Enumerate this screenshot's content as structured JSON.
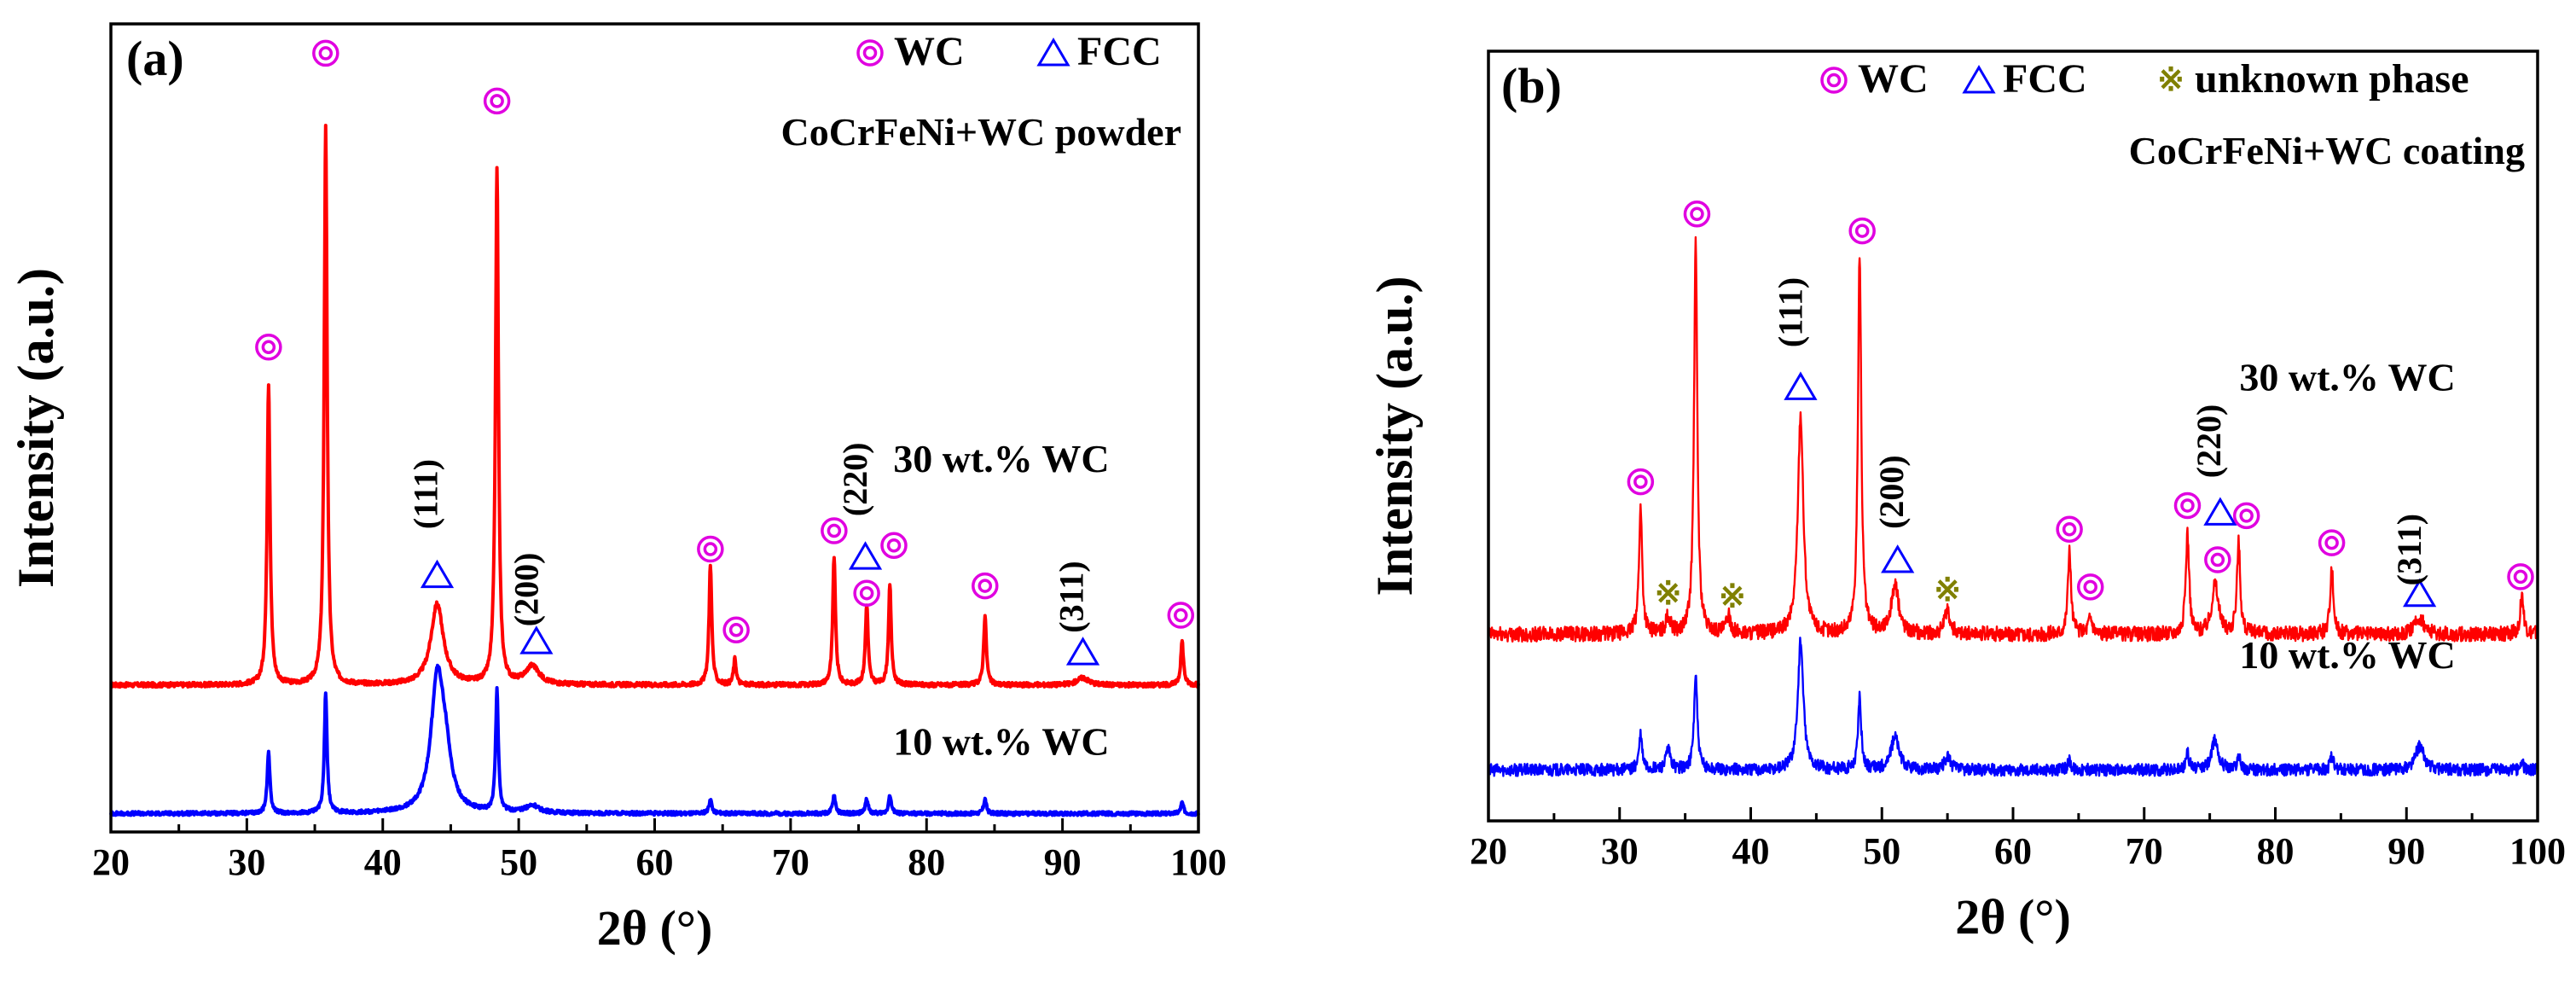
{
  "colors": {
    "series_30": "#ff0000",
    "series_10": "#0000ff",
    "wc_marker": "#e000e0",
    "fcc_marker": "#0000ff",
    "unknown_marker": "#808000",
    "axes": "#000000"
  },
  "chart_data": [
    {
      "panel_label": "(a)",
      "type": "line",
      "title": "",
      "subtitle": "CoCrFeNi+WC powder",
      "xlabel": "2θ (°)",
      "ylabel": "Intensity (a.u.)",
      "xlim": [
        20,
        100
      ],
      "ylim": [
        -0.4,
        1.8
      ],
      "xticks": [
        20,
        30,
        40,
        50,
        60,
        70,
        80,
        90,
        100
      ],
      "yticks_visible": false,
      "grid": false,
      "legend": {
        "placement": "top-right",
        "entries": [
          {
            "symbol": "wc",
            "label": "WC"
          },
          {
            "symbol": "fcc",
            "label": "FCC"
          }
        ]
      },
      "series": [
        {
          "name": "30 wt.% WC",
          "color_key": "series_30",
          "baseline": 0.0,
          "noise": 0.006,
          "label_x": 85.5,
          "label_y": 0.58,
          "peaks": [
            {
              "x": 31.6,
              "h": 0.82,
              "w": 0.13
            },
            {
              "x": 35.8,
              "h": 1.52,
              "w": 0.13
            },
            {
              "x": 44.0,
              "h": 0.22,
              "w": 0.55
            },
            {
              "x": 48.4,
              "h": 1.4,
              "w": 0.13
            },
            {
              "x": 51.0,
              "h": 0.05,
              "w": 0.6
            },
            {
              "x": 64.1,
              "h": 0.33,
              "w": 0.12
            },
            {
              "x": 65.9,
              "h": 0.07,
              "w": 0.12
            },
            {
              "x": 73.2,
              "h": 0.35,
              "w": 0.12
            },
            {
              "x": 75.6,
              "h": 0.22,
              "w": 0.12
            },
            {
              "x": 77.3,
              "h": 0.27,
              "w": 0.12
            },
            {
              "x": 84.3,
              "h": 0.19,
              "w": 0.12
            },
            {
              "x": 91.5,
              "h": 0.02,
              "w": 0.5
            },
            {
              "x": 98.8,
              "h": 0.12,
              "w": 0.12
            }
          ]
        },
        {
          "name": "10 wt.% WC",
          "color_key": "series_10",
          "baseline": -0.35,
          "noise": 0.005,
          "label_x": 85.5,
          "label_y": -0.19,
          "peaks": [
            {
              "x": 31.6,
              "h": 0.17,
              "w": 0.12
            },
            {
              "x": 35.8,
              "h": 0.33,
              "w": 0.12
            },
            {
              "x": 44.0,
              "h": 0.35,
              "w": 0.55
            },
            {
              "x": 44.6,
              "h": 0.12,
              "w": 0.5
            },
            {
              "x": 48.4,
              "h": 0.33,
              "w": 0.12
            },
            {
              "x": 51.0,
              "h": 0.02,
              "w": 0.6
            },
            {
              "x": 64.1,
              "h": 0.04,
              "w": 0.12
            },
            {
              "x": 73.2,
              "h": 0.05,
              "w": 0.12
            },
            {
              "x": 75.6,
              "h": 0.04,
              "w": 0.12
            },
            {
              "x": 77.3,
              "h": 0.05,
              "w": 0.12
            },
            {
              "x": 84.3,
              "h": 0.04,
              "w": 0.12
            },
            {
              "x": 98.8,
              "h": 0.03,
              "w": 0.12
            }
          ]
        }
      ],
      "markers": [
        {
          "symbol": "wc",
          "x": 31.6,
          "y": 0.92
        },
        {
          "symbol": "wc",
          "x": 35.8,
          "y": 1.72
        },
        {
          "symbol": "wc",
          "x": 48.4,
          "y": 1.59
        },
        {
          "symbol": "fcc",
          "x": 44.0,
          "y": 0.3
        },
        {
          "symbol": "fcc",
          "x": 51.3,
          "y": 0.12
        },
        {
          "symbol": "wc",
          "x": 64.1,
          "y": 0.37
        },
        {
          "symbol": "wc",
          "x": 66.0,
          "y": 0.15
        },
        {
          "symbol": "wc",
          "x": 73.2,
          "y": 0.42
        },
        {
          "symbol": "fcc",
          "x": 75.5,
          "y": 0.35
        },
        {
          "symbol": "wc",
          "x": 75.6,
          "y": 0.25
        },
        {
          "symbol": "wc",
          "x": 77.6,
          "y": 0.38
        },
        {
          "symbol": "wc",
          "x": 84.3,
          "y": 0.27
        },
        {
          "symbol": "fcc",
          "x": 91.5,
          "y": 0.09
        },
        {
          "symbol": "wc",
          "x": 98.7,
          "y": 0.19
        }
      ],
      "annotations": [
        {
          "text": "(111)",
          "x": 44.0,
          "y": 0.52,
          "rotate": true
        },
        {
          "text": "(200)",
          "x": 51.4,
          "y": 0.26,
          "rotate": true
        },
        {
          "text": "(220)",
          "x": 75.6,
          "y": 0.56,
          "rotate": true
        },
        {
          "text": "(311)",
          "x": 91.5,
          "y": 0.24,
          "rotate": true
        }
      ]
    },
    {
      "panel_label": "(b)",
      "type": "line",
      "title": "",
      "subtitle": "CoCrFeNi+WC coating",
      "xlabel": "2θ (°)",
      "ylabel": "Intensity (a.u.)",
      "xlim": [
        20,
        100
      ],
      "ylim": [
        -0.55,
        1.72
      ],
      "xticks": [
        20,
        30,
        40,
        50,
        60,
        70,
        80,
        90,
        100
      ],
      "yticks_visible": false,
      "grid": false,
      "legend": {
        "placement": "top-right",
        "entries": [
          {
            "symbol": "wc",
            "label": "WC"
          },
          {
            "symbol": "fcc",
            "label": "FCC"
          },
          {
            "symbol": "unknown",
            "label": "unknown phase"
          }
        ]
      },
      "series": [
        {
          "name": "30 wt.% WC",
          "color_key": "series_30",
          "baseline": 0.0,
          "noise": 0.022,
          "label_x": 85.5,
          "label_y": 0.72,
          "peaks": [
            {
              "x": 31.6,
              "h": 0.37,
              "w": 0.15
            },
            {
              "x": 33.7,
              "h": 0.05,
              "w": 0.2
            },
            {
              "x": 35.8,
              "h": 1.15,
              "w": 0.15
            },
            {
              "x": 38.3,
              "h": 0.05,
              "w": 0.2
            },
            {
              "x": 43.8,
              "h": 0.65,
              "w": 0.25
            },
            {
              "x": 48.3,
              "h": 1.12,
              "w": 0.15
            },
            {
              "x": 51.0,
              "h": 0.14,
              "w": 0.35
            },
            {
              "x": 55.0,
              "h": 0.07,
              "w": 0.25
            },
            {
              "x": 64.3,
              "h": 0.24,
              "w": 0.15
            },
            {
              "x": 65.9,
              "h": 0.05,
              "w": 0.2
            },
            {
              "x": 73.3,
              "h": 0.3,
              "w": 0.15
            },
            {
              "x": 75.4,
              "h": 0.15,
              "w": 0.3
            },
            {
              "x": 77.2,
              "h": 0.27,
              "w": 0.15
            },
            {
              "x": 84.3,
              "h": 0.2,
              "w": 0.15
            },
            {
              "x": 91.0,
              "h": 0.05,
              "w": 0.4
            },
            {
              "x": 98.8,
              "h": 0.12,
              "w": 0.15
            }
          ]
        },
        {
          "name": "10 wt.% WC",
          "color_key": "series_10",
          "baseline": -0.4,
          "noise": 0.018,
          "label_x": 85.5,
          "label_y": -0.1,
          "peaks": [
            {
              "x": 31.6,
              "h": 0.1,
              "w": 0.15
            },
            {
              "x": 33.7,
              "h": 0.06,
              "w": 0.2
            },
            {
              "x": 35.8,
              "h": 0.28,
              "w": 0.15
            },
            {
              "x": 43.8,
              "h": 0.38,
              "w": 0.25
            },
            {
              "x": 48.3,
              "h": 0.21,
              "w": 0.15
            },
            {
              "x": 51.0,
              "h": 0.1,
              "w": 0.35
            },
            {
              "x": 55.0,
              "h": 0.04,
              "w": 0.25
            },
            {
              "x": 64.3,
              "h": 0.03,
              "w": 0.15
            },
            {
              "x": 73.3,
              "h": 0.05,
              "w": 0.15
            },
            {
              "x": 75.4,
              "h": 0.09,
              "w": 0.3
            },
            {
              "x": 77.2,
              "h": 0.04,
              "w": 0.15
            },
            {
              "x": 84.3,
              "h": 0.04,
              "w": 0.15
            },
            {
              "x": 91.0,
              "h": 0.07,
              "w": 0.4
            },
            {
              "x": 98.8,
              "h": 0.02,
              "w": 0.15
            }
          ]
        }
      ],
      "markers": [
        {
          "symbol": "wc",
          "x": 31.6,
          "y": 0.45
        },
        {
          "symbol": "unknown",
          "x": 33.7,
          "y": 0.12
        },
        {
          "symbol": "wc",
          "x": 35.9,
          "y": 1.24
        },
        {
          "symbol": "unknown",
          "x": 38.6,
          "y": 0.11
        },
        {
          "symbol": "fcc",
          "x": 43.8,
          "y": 0.73
        },
        {
          "symbol": "wc",
          "x": 48.5,
          "y": 1.19
        },
        {
          "symbol": "fcc",
          "x": 51.2,
          "y": 0.22
        },
        {
          "symbol": "unknown",
          "x": 55.0,
          "y": 0.13
        },
        {
          "symbol": "wc",
          "x": 64.3,
          "y": 0.31
        },
        {
          "symbol": "wc",
          "x": 65.9,
          "y": 0.14
        },
        {
          "symbol": "wc",
          "x": 73.3,
          "y": 0.38
        },
        {
          "symbol": "fcc",
          "x": 75.8,
          "y": 0.36
        },
        {
          "symbol": "wc",
          "x": 75.6,
          "y": 0.22
        },
        {
          "symbol": "wc",
          "x": 77.8,
          "y": 0.35
        },
        {
          "symbol": "wc",
          "x": 84.3,
          "y": 0.27
        },
        {
          "symbol": "fcc",
          "x": 91.0,
          "y": 0.12
        },
        {
          "symbol": "wc",
          "x": 98.7,
          "y": 0.17
        }
      ],
      "annotations": [
        {
          "text": "(111)",
          "x": 43.9,
          "y": 0.95,
          "rotate": true
        },
        {
          "text": "(200)",
          "x": 51.6,
          "y": 0.42,
          "rotate": true
        },
        {
          "text": "(220)",
          "x": 75.8,
          "y": 0.57,
          "rotate": true
        },
        {
          "text": "(311)",
          "x": 91.1,
          "y": 0.25,
          "rotate": true
        }
      ]
    }
  ]
}
